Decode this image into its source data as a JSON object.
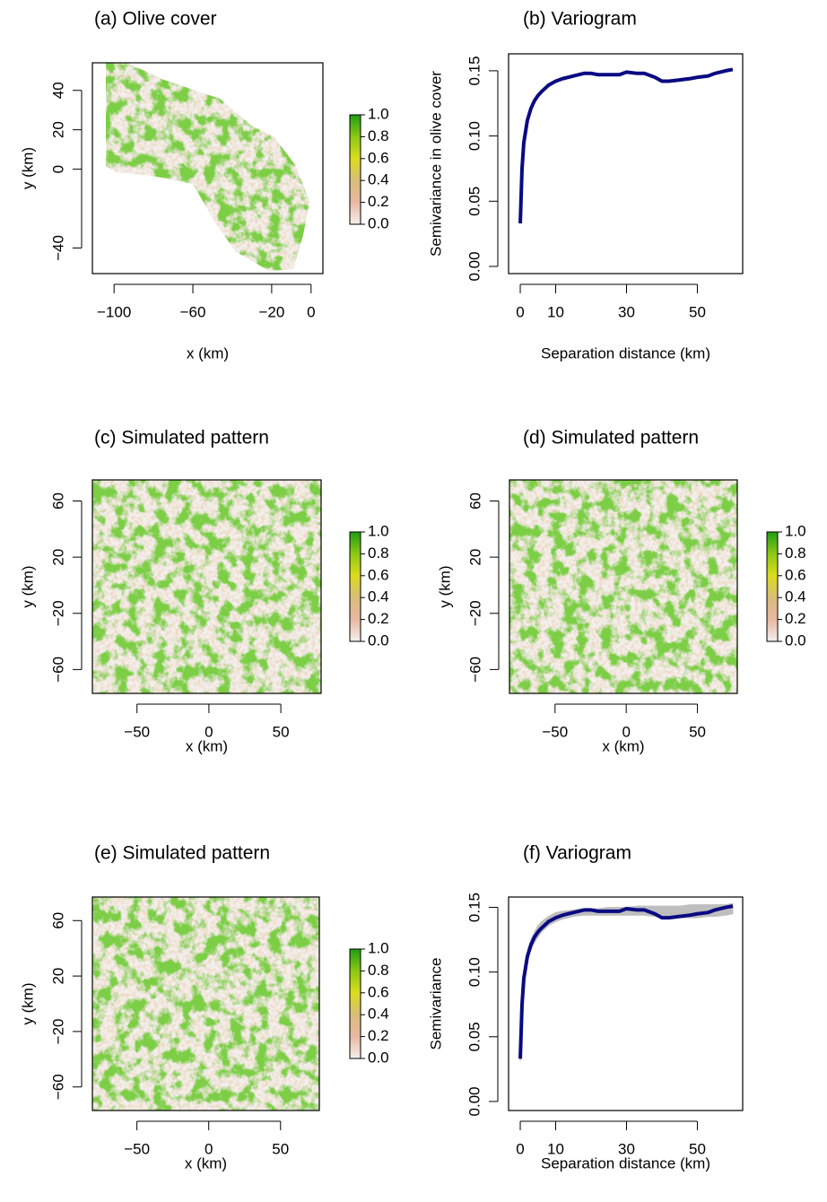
{
  "chart_data": [
    {
      "type": "raster",
      "title": "(a) Olive cover",
      "x_label": "x (km)",
      "y_label": "y (km)",
      "xlim": [
        -111,
        6
      ],
      "ylim": [
        -53,
        54
      ],
      "xticks": [
        {
          "value": -100,
          "label": "−100"
        },
        {
          "value": -60,
          "label": "−60"
        },
        {
          "value": -20,
          "label": "−20"
        },
        0
      ],
      "yticks": [
        {
          "value": -40,
          "label": "−40"
        },
        0,
        20,
        40
      ],
      "colorbar": {
        "lim": [
          0,
          1
        ],
        "colors": [
          "#f3efed",
          "#e8b8a2",
          "#d8bd79",
          "#dcdc1e",
          "#8cc814",
          "#1e9e14"
        ],
        "ticks": [
          {
            "value": 0,
            "label": "0.0"
          },
          0.2,
          0.4,
          0.6,
          0.8,
          {
            "value": 1,
            "label": "1.0"
          }
        ]
      }
    },
    {
      "type": "line",
      "title": "(b) Variogram",
      "x_label": "Separation distance (km)",
      "y_label": "Semivariance in olive cover",
      "xlim": [
        -3.3,
        62.8
      ],
      "ylim": [
        -0.0055,
        0.163
      ],
      "xticks": [
        0,
        10,
        30,
        50
      ],
      "yticks": [
        {
          "value": 0,
          "label": "0.00"
        },
        0.05,
        {
          "value": 0.1,
          "label": "0.10"
        },
        0.15
      ],
      "x": [
        0,
        0.5,
        1,
        2,
        3,
        4,
        5,
        6,
        8,
        10,
        12,
        15,
        18,
        20,
        22,
        25,
        28,
        30,
        33,
        35,
        38,
        40,
        42,
        45,
        48,
        50,
        53,
        55,
        58,
        60
      ],
      "color": "#0a0a82",
      "values": [
        0.033,
        0.075,
        0.095,
        0.112,
        0.121,
        0.127,
        0.131,
        0.134,
        0.139,
        0.142,
        0.144,
        0.146,
        0.148,
        0.148,
        0.147,
        0.147,
        0.147,
        0.149,
        0.148,
        0.148,
        0.145,
        0.142,
        0.142,
        0.143,
        0.144,
        0.145,
        0.146,
        0.148,
        0.15,
        0.151
      ]
    },
    {
      "type": "raster",
      "title": "(c) Simulated pattern",
      "x_label": "x (km)",
      "y_label": "y (km)",
      "xlim": [
        -81,
        78
      ],
      "ylim": [
        -77,
        75
      ],
      "xticks": [
        {
          "value": -50,
          "label": "−50"
        },
        0,
        50
      ],
      "yticks": [
        {
          "value": -60,
          "label": "−60"
        },
        {
          "value": -20,
          "label": "−20"
        },
        20,
        60
      ],
      "colorbar": {
        "lim": [
          0,
          1
        ],
        "colors": [
          "#f3efed",
          "#e8b8a2",
          "#d8bd79",
          "#dcdc1e",
          "#8cc814",
          "#1e9e14"
        ],
        "ticks": [
          {
            "value": 0,
            "label": "0.0"
          },
          0.2,
          0.4,
          0.6,
          0.8,
          {
            "value": 1,
            "label": "1.0"
          }
        ]
      }
    },
    {
      "type": "raster",
      "title": "(d) Simulated pattern",
      "x_label": "x (km)",
      "y_label": "y (km)",
      "xlim": [
        -82,
        78
      ],
      "ylim": [
        -77,
        75
      ],
      "xticks": [
        {
          "value": -50,
          "label": "−50"
        },
        0,
        50
      ],
      "yticks": [
        {
          "value": -60,
          "label": "−60"
        },
        {
          "value": -20,
          "label": "−20"
        },
        20,
        60
      ],
      "colorbar": {
        "lim": [
          0,
          1
        ],
        "colors": [
          "#f3efed",
          "#e8b8a2",
          "#d8bd79",
          "#dcdc1e",
          "#8cc814",
          "#1e9e14"
        ],
        "ticks": [
          {
            "value": 0,
            "label": "0.0"
          },
          0.2,
          0.4,
          0.6,
          0.8,
          {
            "value": 1,
            "label": "1.0"
          }
        ]
      }
    },
    {
      "type": "raster",
      "title": "(e) Simulated pattern",
      "x_label": "x (km)",
      "y_label": "y (km)",
      "xlim": [
        -81,
        77
      ],
      "ylim": [
        -77,
        77
      ],
      "xticks": [
        {
          "value": -50,
          "label": "−50"
        },
        0,
        50
      ],
      "yticks": [
        {
          "value": -60,
          "label": "−60"
        },
        {
          "value": -20,
          "label": "−20"
        },
        20,
        60
      ],
      "colorbar": {
        "lim": [
          0,
          1
        ],
        "colors": [
          "#f3efed",
          "#e8b8a2",
          "#d8bd79",
          "#dcdc1e",
          "#8cc814",
          "#1e9e14"
        ],
        "ticks": [
          {
            "value": 0,
            "label": "0.0"
          },
          0.2,
          0.4,
          0.6,
          0.8,
          {
            "value": 1,
            "label": "1.0"
          }
        ]
      }
    },
    {
      "type": "line",
      "title": "(f) Variogram",
      "x_label": "Separation distance (km)",
      "y_label": "Semivariance",
      "xlim": [
        -3.3,
        62.8
      ],
      "ylim": [
        -0.007,
        0.158
      ],
      "xticks": [
        0,
        10,
        30,
        50
      ],
      "yticks": [
        {
          "value": 0,
          "label": "0.00"
        },
        0.05,
        {
          "value": 0.1,
          "label": "0.10"
        },
        0.15
      ],
      "x": [
        0,
        0.5,
        1,
        2,
        3,
        4,
        5,
        6,
        8,
        10,
        12,
        15,
        18,
        20,
        22,
        25,
        28,
        30,
        33,
        35,
        38,
        40,
        42,
        45,
        48,
        50,
        53,
        55,
        58,
        60
      ],
      "color": "#0a0a82",
      "values": [
        0.033,
        0.075,
        0.095,
        0.112,
        0.121,
        0.127,
        0.131,
        0.134,
        0.139,
        0.142,
        0.144,
        0.146,
        0.148,
        0.148,
        0.147,
        0.147,
        0.147,
        0.149,
        0.148,
        0.148,
        0.145,
        0.142,
        0.142,
        0.143,
        0.144,
        0.145,
        0.146,
        0.148,
        0.15,
        0.151
      ],
      "band": {
        "color": "#bebebe",
        "lower": [
          0.031,
          0.07,
          0.09,
          0.108,
          0.117,
          0.123,
          0.127,
          0.131,
          0.136,
          0.139,
          0.141,
          0.143,
          0.144,
          0.144,
          0.144,
          0.144,
          0.144,
          0.144,
          0.144,
          0.144,
          0.143,
          0.142,
          0.141,
          0.142,
          0.142,
          0.142,
          0.143,
          0.143,
          0.144,
          0.145
        ],
        "upper": [
          0.034,
          0.078,
          0.099,
          0.116,
          0.125,
          0.131,
          0.136,
          0.139,
          0.143,
          0.146,
          0.147,
          0.148,
          0.149,
          0.149,
          0.149,
          0.15,
          0.15,
          0.15,
          0.151,
          0.151,
          0.151,
          0.151,
          0.151,
          0.151,
          0.152,
          0.152,
          0.152,
          0.152,
          0.152,
          0.153
        ]
      }
    }
  ]
}
